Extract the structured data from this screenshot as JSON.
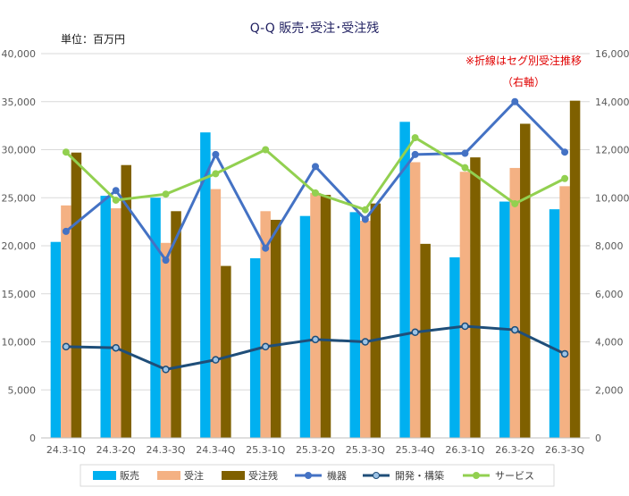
{
  "chart_data": {
    "type": "bar",
    "title": "Q-Q 販売･受注･受注残",
    "unit_label": "単位：百万円",
    "note_line1": "※折線はセグ別受注推移",
    "note_line2": "（右軸）",
    "categories": [
      "24.3-1Q",
      "24.3-2Q",
      "24.3-3Q",
      "24.3-4Q",
      "25.3-1Q",
      "25.3-2Q",
      "25.3-3Q",
      "25.3-4Q",
      "26.3-1Q",
      "26.3-2Q",
      "26.3-3Q"
    ],
    "ylim_left": [
      0,
      40000
    ],
    "ylim_right": [
      0,
      16000
    ],
    "yticks_left": [
      "0",
      "5,000",
      "10,000",
      "15,000",
      "20,000",
      "25,000",
      "30,000",
      "35,000",
      "40,000"
    ],
    "yticks_right": [
      "0",
      "2,000",
      "4,000",
      "6,000",
      "8,000",
      "10,000",
      "12,000",
      "14,000",
      "16,000"
    ],
    "bar_series": [
      {
        "name": "販売",
        "color": "#00b0f0",
        "values": [
          20400,
          25200,
          25000,
          31800,
          18700,
          23100,
          23500,
          32900,
          18800,
          24600,
          23800
        ]
      },
      {
        "name": "受注",
        "color": "#f4b183",
        "values": [
          24200,
          23900,
          20300,
          25900,
          23600,
          25500,
          22600,
          28700,
          27700,
          28100,
          26200
        ]
      },
      {
        "name": "受注残",
        "color": "#7f6000",
        "values": [
          29700,
          28400,
          23600,
          17900,
          22700,
          25300,
          24400,
          20200,
          29200,
          32700,
          35100
        ]
      }
    ],
    "line_series": [
      {
        "name": "機器",
        "color": "#4472c4",
        "values": [
          8600,
          10300,
          7400,
          11800,
          7900,
          11300,
          9100,
          11800,
          11850,
          14000,
          11900
        ]
      },
      {
        "name": "開発・構築",
        "color": "#1f4e79",
        "values": [
          3800,
          3750,
          2850,
          3250,
          3800,
          4100,
          4000,
          4400,
          4650,
          4500,
          3500
        ]
      },
      {
        "name": "サービス",
        "color": "#92d050",
        "values": [
          11900,
          9900,
          10150,
          11000,
          12000,
          10200,
          9500,
          12500,
          11250,
          9750,
          10800
        ]
      }
    ]
  }
}
